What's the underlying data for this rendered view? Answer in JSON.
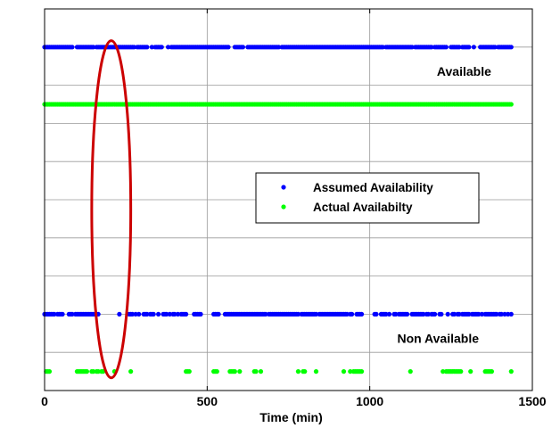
{
  "chart_data": {
    "type": "scatter",
    "title": "",
    "xlabel": "Time (min)",
    "ylabel": "",
    "xlim": [
      0,
      1500
    ],
    "ylim": [
      0,
      6
    ],
    "x_ticks": [
      0,
      500,
      1000,
      1500
    ],
    "x_tick_labels": [
      "0",
      "500",
      "1000",
      "1500"
    ],
    "grid": true,
    "legend_position": "center-right",
    "series": [
      {
        "name": "Assumed Availability",
        "color": "#0000ff",
        "y_available": 5.4,
        "y_unavailable": 1.2,
        "available_times": [
          0,
          5,
          10,
          15,
          20,
          25,
          30,
          35,
          40,
          45,
          50,
          55,
          60,
          65,
          70,
          75,
          80,
          85,
          100,
          105,
          110,
          115,
          120,
          125,
          130,
          135,
          140,
          145,
          150,
          160,
          165,
          170,
          175,
          180,
          185,
          190,
          195,
          200,
          205,
          210,
          215,
          220,
          225,
          230,
          235,
          240,
          245,
          250,
          255,
          260,
          265,
          270,
          275,
          285,
          290,
          295,
          300,
          305,
          310,
          315,
          330,
          340,
          345,
          350,
          355,
          360,
          380,
          390,
          395,
          400,
          405,
          410,
          415,
          420,
          425,
          430,
          435,
          440,
          445,
          450,
          455,
          460,
          465,
          470,
          475,
          480,
          485,
          490,
          495,
          500,
          505,
          510,
          515,
          520,
          525,
          530,
          535,
          540,
          545,
          550,
          555,
          560,
          565,
          585,
          590,
          595,
          600,
          605,
          610,
          625,
          630,
          635,
          640,
          645,
          650,
          655,
          660,
          665,
          670,
          675,
          680,
          685,
          690,
          695,
          700,
          705,
          710,
          715,
          720,
          730,
          735,
          740,
          745,
          750,
          755,
          760,
          765,
          770,
          775,
          780,
          785,
          790,
          795,
          800,
          805,
          810,
          815,
          820,
          825,
          830,
          835,
          840,
          845,
          850,
          855,
          860,
          865,
          870,
          875,
          880,
          885,
          890,
          895,
          900,
          905,
          910,
          915,
          920,
          925,
          930,
          935,
          940,
          945,
          950,
          955,
          960,
          965,
          970,
          975,
          980,
          985,
          990,
          995,
          1000,
          1005,
          1010,
          1015,
          1020,
          1025,
          1030,
          1035,
          1040,
          1050,
          1055,
          1060,
          1065,
          1070,
          1075,
          1080,
          1085,
          1090,
          1095,
          1100,
          1105,
          1110,
          1115,
          1120,
          1125,
          1130,
          1140,
          1145,
          1150,
          1155,
          1160,
          1165,
          1170,
          1175,
          1180,
          1185,
          1190,
          1200,
          1205,
          1210,
          1215,
          1220,
          1225,
          1230,
          1235,
          1250,
          1255,
          1260,
          1265,
          1270,
          1275,
          1285,
          1290,
          1295,
          1300,
          1305,
          1320,
          1340,
          1345,
          1350,
          1355,
          1360,
          1365,
          1370,
          1375,
          1380,
          1385,
          1395,
          1400,
          1405,
          1410,
          1415,
          1420,
          1425,
          1430,
          1435
        ],
        "unavailable_times": [
          0,
          5,
          10,
          15,
          20,
          25,
          30,
          40,
          45,
          50,
          55,
          75,
          80,
          85,
          95,
          100,
          105,
          110,
          115,
          120,
          125,
          130,
          135,
          140,
          145,
          150,
          155,
          160,
          165,
          230,
          260,
          265,
          270,
          280,
          290,
          305,
          310,
          315,
          325,
          330,
          335,
          350,
          365,
          370,
          375,
          385,
          395,
          400,
          410,
          420,
          425,
          430,
          435,
          460,
          465,
          470,
          475,
          480,
          520,
          525,
          530,
          535,
          555,
          560,
          565,
          570,
          575,
          580,
          585,
          590,
          595,
          600,
          605,
          610,
          615,
          620,
          625,
          630,
          635,
          640,
          645,
          650,
          655,
          660,
          665,
          670,
          675,
          680,
          690,
          695,
          700,
          705,
          710,
          715,
          720,
          725,
          730,
          735,
          740,
          745,
          750,
          755,
          760,
          765,
          770,
          775,
          780,
          790,
          795,
          800,
          805,
          810,
          815,
          820,
          825,
          830,
          835,
          845,
          850,
          855,
          860,
          865,
          870,
          875,
          880,
          885,
          890,
          895,
          900,
          905,
          910,
          915,
          920,
          925,
          930,
          940,
          945,
          960,
          965,
          970,
          975,
          1015,
          1020,
          1035,
          1040,
          1045,
          1050,
          1060,
          1075,
          1080,
          1090,
          1095,
          1100,
          1105,
          1110,
          1115,
          1130,
          1135,
          1140,
          1145,
          1150,
          1155,
          1160,
          1165,
          1175,
          1180,
          1190,
          1195,
          1200,
          1215,
          1220,
          1240,
          1255,
          1260,
          1270,
          1275,
          1285,
          1290,
          1295,
          1300,
          1305,
          1315,
          1320,
          1325,
          1330,
          1335,
          1345,
          1355,
          1360,
          1365,
          1370,
          1375,
          1380,
          1385,
          1390,
          1400,
          1405,
          1415,
          1425,
          1435
        ]
      },
      {
        "name": "Actual Availabilty",
        "color": "#00ff00",
        "y_available": 4.5,
        "y_unavailable": 0.3,
        "available_range": [
          0,
          1435
        ],
        "available_step": 5,
        "unavailable_times": [
          5,
          10,
          15,
          100,
          105,
          110,
          115,
          120,
          125,
          130,
          145,
          150,
          160,
          165,
          175,
          180,
          215,
          265,
          435,
          440,
          445,
          520,
          525,
          530,
          570,
          575,
          580,
          585,
          600,
          645,
          650,
          665,
          780,
          795,
          800,
          835,
          920,
          940,
          950,
          955,
          960,
          965,
          970,
          975,
          1125,
          1225,
          1235,
          1240,
          1245,
          1250,
          1255,
          1260,
          1265,
          1270,
          1275,
          1280,
          1310,
          1355,
          1360,
          1365,
          1370,
          1375,
          1435
        ]
      }
    ],
    "annotations": [
      {
        "text": "Available",
        "x": 1290,
        "y": 4.95
      },
      {
        "text": "Non Available",
        "x": 1210,
        "y": 0.75
      }
    ],
    "highlight_ellipse": {
      "color": "#cc0000",
      "cx": 205,
      "cy": 2.85,
      "rx": 60,
      "ry": 2.65
    }
  }
}
